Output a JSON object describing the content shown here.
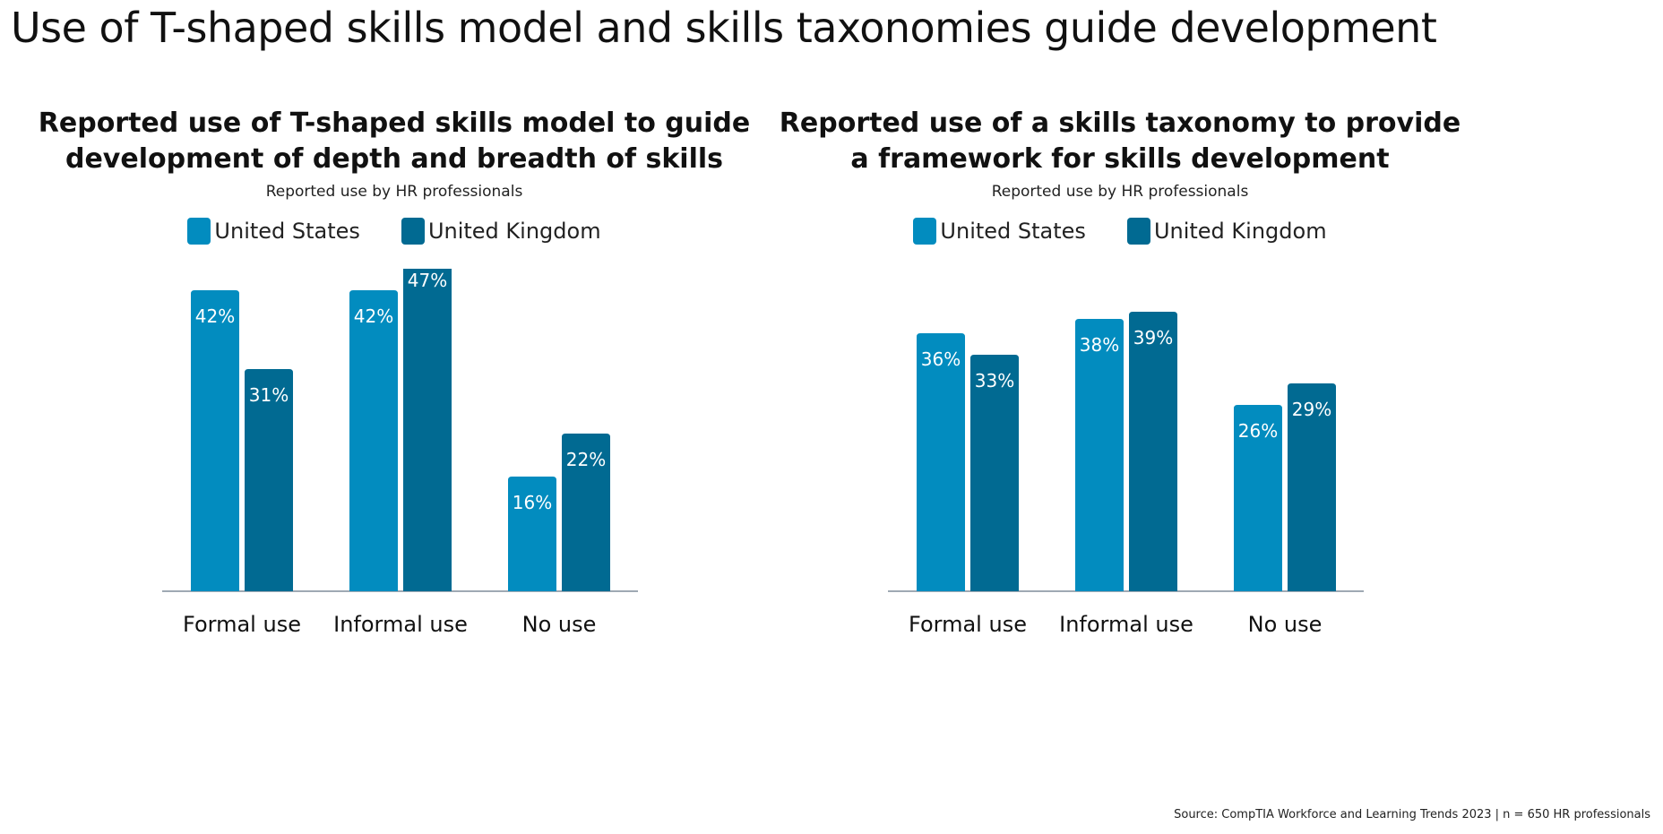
{
  "page": {
    "title": "Use of T-shaped skills model and skills taxonomies guide development",
    "source": "Source: CompTIA Workforce and Learning Trends 2023 | n = 650 HR professionals"
  },
  "colors": {
    "us": "#028CBF",
    "uk": "#016A92",
    "axis": "#9FA9B3"
  },
  "chart_data": [
    {
      "type": "bar",
      "title_line1": "Reported use of T-shaped skills model to guide",
      "title_line2": "development of depth and breadth of skills",
      "subtitle": "Reported use by HR professionals",
      "categories": [
        "Formal use",
        "Informal use",
        "No use"
      ],
      "series": [
        {
          "name": "United States",
          "values": [
            42,
            42,
            16
          ],
          "labels": [
            "42%",
            "42%",
            "16%"
          ]
        },
        {
          "name": "United Kingdom",
          "values": [
            31,
            47,
            22
          ],
          "labels": [
            "31%",
            "47%",
            "22%"
          ]
        }
      ],
      "ylim": [
        0,
        50
      ],
      "legend": "top-center",
      "grid": false
    },
    {
      "type": "bar",
      "title_line1": "Reported use of a skills taxonomy to provide",
      "title_line2": "a framework for skills development",
      "subtitle": "Reported use by HR professionals",
      "categories": [
        "Formal use",
        "Informal use",
        "No use"
      ],
      "series": [
        {
          "name": "United States",
          "values": [
            36,
            38,
            26
          ],
          "labels": [
            "36%",
            "38%",
            "26%"
          ]
        },
        {
          "name": "United Kingdom",
          "values": [
            33,
            39,
            29
          ],
          "labels": [
            "33%",
            "39%",
            "29%"
          ]
        }
      ],
      "ylim": [
        0,
        50
      ],
      "legend": "top-center",
      "grid": false
    }
  ]
}
